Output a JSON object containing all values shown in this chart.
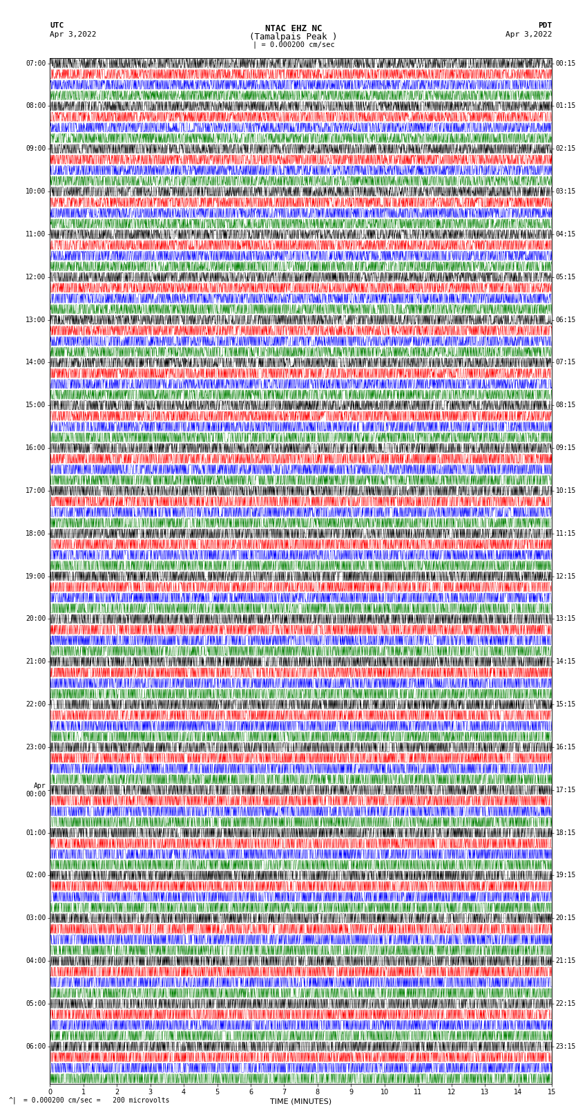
{
  "title_line1": "NTAC EHZ NC",
  "title_line2": "(Tamalpais Peak )",
  "title_scale": "| = 0.000200 cm/sec",
  "left_label_line1": "UTC",
  "left_label_line2": "Apr 3,2022",
  "right_label_line1": "PDT",
  "right_label_line2": "Apr 3,2022",
  "xlabel": "TIME (MINUTES)",
  "bottom_note": "= 0.000200 cm/sec =   200 microvolts",
  "xlim": [
    0,
    15
  ],
  "xticks": [
    0,
    1,
    2,
    3,
    4,
    5,
    6,
    7,
    8,
    9,
    10,
    11,
    12,
    13,
    14,
    15
  ],
  "trace_colors_cycle": [
    "black",
    "red",
    "blue",
    "green"
  ],
  "utc_labels": [
    "07:00",
    "08:00",
    "09:00",
    "10:00",
    "11:00",
    "12:00",
    "13:00",
    "14:00",
    "15:00",
    "16:00",
    "17:00",
    "18:00",
    "19:00",
    "20:00",
    "21:00",
    "22:00",
    "23:00",
    "Apr\n00:00",
    "01:00",
    "02:00",
    "03:00",
    "04:00",
    "05:00",
    "06:00"
  ],
  "pdt_labels": [
    "00:15",
    "01:15",
    "02:15",
    "03:15",
    "04:15",
    "05:15",
    "06:15",
    "07:15",
    "08:15",
    "09:15",
    "10:15",
    "11:15",
    "12:15",
    "13:15",
    "14:15",
    "15:15",
    "16:15",
    "17:15",
    "18:15",
    "19:15",
    "20:15",
    "21:15",
    "22:15",
    "23:15"
  ],
  "n_hours": 24,
  "traces_per_hour": 4,
  "noise_seed": 42,
  "bg_color": "white",
  "grid_color": "#999999",
  "tick_color": "black",
  "title_fontsize": 9,
  "label_fontsize": 8,
  "tick_fontsize": 7
}
